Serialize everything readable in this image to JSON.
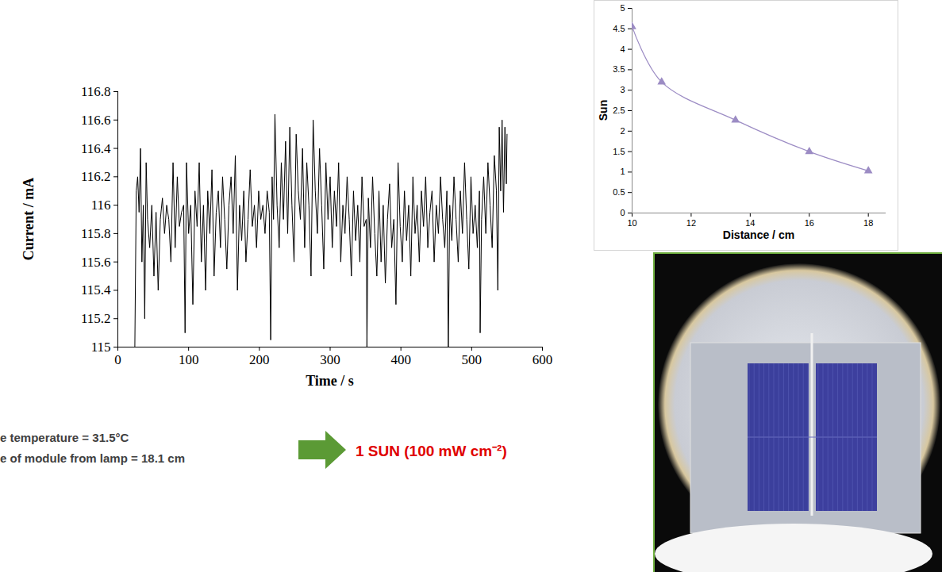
{
  "chart_data": [
    {
      "type": "line",
      "x_label": "Time / s",
      "y_label": "Current / mA",
      "color": "#000000",
      "xlim": [
        0,
        600
      ],
      "xticks": [
        0,
        100,
        200,
        300,
        400,
        500,
        600
      ],
      "ylim": [
        115,
        116.8
      ],
      "yticks": [
        115,
        115.2,
        115.4,
        115.6,
        115.8,
        116,
        116.2,
        116.4,
        116.6,
        116.8
      ],
      "grid": false,
      "x": [
        24,
        26,
        28,
        30,
        32,
        34,
        36,
        38,
        40,
        42,
        45,
        48,
        51,
        54,
        57,
        60,
        63,
        66,
        69,
        72,
        75,
        78,
        81,
        84,
        87,
        90,
        93,
        95,
        97,
        100,
        103,
        106,
        109,
        112,
        115,
        118,
        121,
        124,
        127,
        130,
        133,
        136,
        139,
        142,
        145,
        148,
        151,
        154,
        157,
        160,
        163,
        166,
        169,
        172,
        175,
        178,
        181,
        184,
        187,
        190,
        193,
        196,
        199,
        202,
        205,
        208,
        211,
        214,
        216,
        218,
        220,
        222,
        225,
        228,
        231,
        234,
        237,
        240,
        243,
        246,
        249,
        252,
        255,
        258,
        261,
        264,
        267,
        270,
        273,
        276,
        279,
        282,
        285,
        288,
        291,
        294,
        297,
        300,
        303,
        306,
        309,
        312,
        315,
        318,
        321,
        324,
        327,
        330,
        333,
        336,
        339,
        342,
        345,
        348,
        351,
        352,
        354,
        357,
        360,
        363,
        366,
        369,
        372,
        375,
        378,
        381,
        384,
        387,
        390,
        393,
        396,
        399,
        402,
        405,
        408,
        411,
        414,
        417,
        420,
        423,
        426,
        429,
        432,
        435,
        438,
        441,
        444,
        447,
        450,
        453,
        456,
        459,
        462,
        465,
        467,
        469,
        472,
        475,
        478,
        481,
        484,
        487,
        490,
        493,
        496,
        499,
        502,
        505,
        508,
        511,
        512,
        514,
        517,
        520,
        523,
        526,
        529,
        532,
        535,
        537,
        539,
        541,
        543,
        545,
        547,
        549,
        550
      ],
      "values": [
        115.0,
        116.1,
        116.2,
        115.95,
        116.4,
        115.6,
        116.0,
        115.2,
        116.3,
        115.9,
        115.7,
        116.0,
        115.5,
        115.95,
        115.4,
        115.9,
        116.05,
        115.8,
        116.0,
        115.9,
        115.6,
        116.3,
        115.7,
        116.2,
        115.85,
        115.95,
        116.0,
        115.1,
        116.3,
        115.8,
        116.0,
        115.3,
        116.1,
        115.85,
        116.3,
        115.6,
        116.0,
        115.4,
        116.1,
        115.8,
        116.25,
        115.5,
        115.95,
        116.1,
        115.7,
        116.2,
        115.9,
        115.55,
        116.0,
        116.2,
        115.8,
        116.35,
        115.4,
        116.0,
        115.75,
        116.1,
        115.6,
        115.9,
        116.25,
        115.85,
        116.0,
        115.7,
        116.1,
        115.9,
        116.0,
        115.8,
        116.1,
        115.95,
        115.05,
        116.2,
        115.9,
        116.64,
        116.0,
        115.7,
        116.3,
        115.9,
        116.45,
        115.8,
        116.55,
        116.0,
        115.6,
        116.5,
        116.1,
        115.9,
        116.4,
        115.7,
        116.3,
        116.0,
        115.5,
        116.6,
        116.1,
        115.8,
        116.4,
        116.0,
        115.55,
        116.3,
        115.9,
        116.2,
        115.7,
        116.1,
        115.85,
        116.3,
        115.6,
        116.0,
        115.8,
        116.2,
        115.9,
        115.5,
        116.1,
        115.75,
        116.0,
        115.6,
        116.2,
        115.85,
        115.9,
        115.0,
        116.05,
        115.7,
        116.2,
        115.8,
        115.5,
        116.1,
        115.6,
        116.0,
        115.45,
        115.9,
        116.15,
        115.7,
        115.9,
        115.3,
        116.3,
        115.85,
        115.6,
        116.1,
        115.75,
        116.0,
        115.5,
        116.2,
        115.8,
        116.0,
        115.6,
        116.1,
        115.85,
        116.2,
        115.7,
        115.95,
        116.1,
        115.6,
        116.0,
        115.8,
        116.2,
        115.9,
        115.7,
        116.1,
        115.0,
        116.0,
        115.75,
        116.2,
        115.9,
        115.6,
        116.1,
        115.8,
        116.3,
        115.9,
        115.55,
        116.2,
        115.8,
        116.0,
        115.7,
        116.1,
        115.1,
        115.9,
        116.2,
        115.8,
        116.3,
        116.0,
        115.7,
        116.35,
        116.1,
        115.4,
        116.55,
        116.1,
        116.6,
        115.95,
        116.55,
        116.15,
        116.5
      ]
    },
    {
      "type": "line",
      "x_label": "Distance / cm",
      "y_label": "Sun",
      "color": "#9c8cc4",
      "marker": "triangle",
      "xlim": [
        10,
        18.6
      ],
      "xticks": [
        10,
        12,
        14,
        16,
        18
      ],
      "ylim": [
        0,
        5
      ],
      "yticks": [
        0,
        0.5,
        1,
        1.5,
        2,
        2.5,
        3,
        3.5,
        4,
        4.5,
        5
      ],
      "grid": false,
      "x": [
        10,
        11,
        13.5,
        16,
        18
      ],
      "values": [
        4.55,
        3.2,
        2.27,
        1.5,
        1.03
      ]
    }
  ],
  "annotations": [
    "e temperature = 31.5°C",
    "e of module from lamp = 18.1 cm",
    "1 SUN (100 mW cm⁻²)"
  ]
}
